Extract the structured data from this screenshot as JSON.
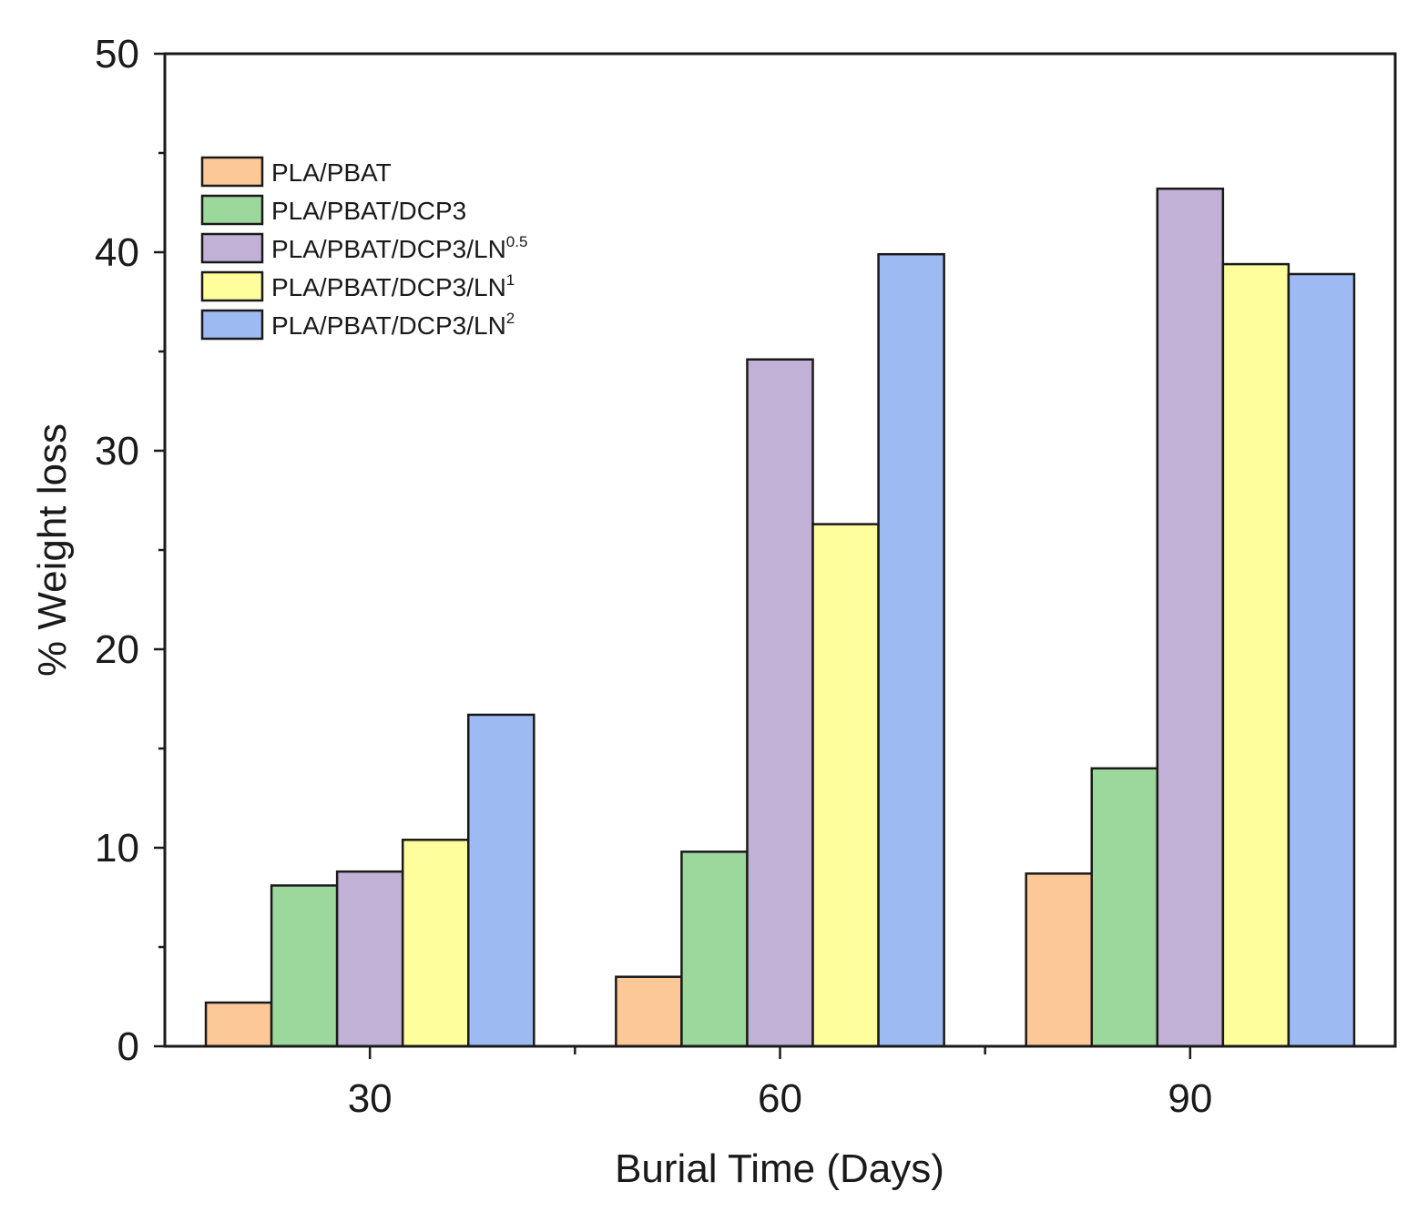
{
  "chart_data": {
    "type": "bar",
    "title": "",
    "xlabel": "Burial Time (Days)",
    "ylabel": "% Weight loss",
    "categories": [
      "30",
      "60",
      "90"
    ],
    "ylim": [
      0,
      50
    ],
    "yticks": [
      "0",
      "10",
      "20",
      "30",
      "40",
      "50"
    ],
    "grid": false,
    "legend_position": "top-left",
    "series": [
      {
        "name": "PLA/PBAT",
        "label_base": "PLA/PBAT",
        "label_sup": "",
        "color": "#FDC897",
        "values": [
          2.2,
          3.5,
          8.7
        ]
      },
      {
        "name": "PLA/PBAT/DCP3",
        "label_base": "PLA/PBAT/DCP3",
        "label_sup": "",
        "color": "#9CD79C",
        "values": [
          8.1,
          9.8,
          14.0
        ]
      },
      {
        "name": "PLA/PBAT/DCP3/LN0.5",
        "label_base": "PLA/PBAT/DCP3/LN",
        "label_sup": "0.5",
        "color": "#C2B1D6",
        "values": [
          8.8,
          34.6,
          43.2
        ]
      },
      {
        "name": "PLA/PBAT/DCP3/LN1",
        "label_base": "PLA/PBAT/DCP3/LN",
        "label_sup": "1",
        "color": "#FEFE9C",
        "values": [
          10.4,
          26.3,
          39.4
        ]
      },
      {
        "name": "PLA/PBAT/DCP3/LN2",
        "label_base": "PLA/PBAT/DCP3/LN",
        "label_sup": "2",
        "color": "#9DBAF2",
        "values": [
          16.7,
          39.9,
          38.9
        ]
      }
    ]
  }
}
